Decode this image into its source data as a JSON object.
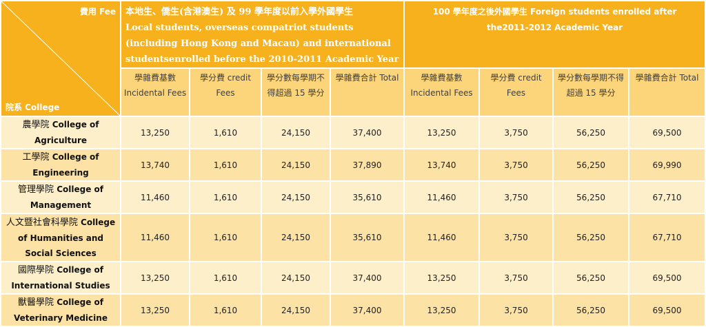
{
  "header": {
    "fee_label": "費用 Fee",
    "college_label": "院系 College",
    "local_group": {
      "zh": "本地生、僑生(含港澳生) 及 99 學年度以前入學外國學生",
      "en": "Local students, overseas compatriot students (including Hong Kong and Macau) and international studentsenrolled before the 2010-2011 Academic Year"
    },
    "foreign_group": {
      "line1": "100 學年度之後外國學生 Foreign students enrolled after",
      "line2": "the2011-2012 Academic Year"
    }
  },
  "subheaders": {
    "local": [
      "學雜費基數 Incidental Fees",
      "學分費 credit Fees",
      "學分數每學期不得超過 15 學分",
      "學雜費合計 Total"
    ],
    "foreign": [
      "學雜費基數 Incidental Fees",
      "學分費 credit Fees",
      "學分數每學期不得超過 15 學分",
      "學雜費合計 Total"
    ]
  },
  "rows": [
    {
      "college_zh": "農學院",
      "college_en": "College of Agriculture",
      "local": [
        "13,250",
        "1,610",
        "24,150",
        "37,400"
      ],
      "foreign": [
        "13,250",
        "3,750",
        "56,250",
        "69,500"
      ]
    },
    {
      "college_zh": "工學院",
      "college_en": "College of Engineering",
      "local": [
        "13,740",
        "1,610",
        "24,150",
        "37,890"
      ],
      "foreign": [
        "13,740",
        "3,750",
        "56,250",
        "69,990"
      ]
    },
    {
      "college_zh": "管理學院",
      "college_en": "College of Management",
      "local": [
        "11,460",
        "1,610",
        "24,150",
        "35,610"
      ],
      "foreign": [
        "11,460",
        "3,750",
        "56,250",
        "67,710"
      ]
    },
    {
      "college_zh": "人文暨社會科學院",
      "college_en": "College of Humanities and Social Sciences",
      "local": [
        "11,460",
        "1,610",
        "24,150",
        "35,610"
      ],
      "foreign": [
        "11,460",
        "3,750",
        "56,250",
        "67,710"
      ]
    },
    {
      "college_zh": "國際學院",
      "college_en": "College of International Studies",
      "local": [
        "13,250",
        "1,610",
        "24,150",
        "37,400"
      ],
      "foreign": [
        "13,250",
        "3,750",
        "56,250",
        "69,500"
      ]
    },
    {
      "college_zh": "獸醫學院",
      "college_en": "College of Veterinary Medicine",
      "local": [
        "13,250",
        "1,610",
        "24,150",
        "37,400"
      ],
      "foreign": [
        "13,250",
        "3,750",
        "56,250",
        "69,500"
      ]
    }
  ],
  "colors": {
    "header_orange": "#f7b11c",
    "subheader_yellow": "#fcd47a",
    "row_light": "#fdefc9",
    "row_dark": "#fde2a5"
  }
}
